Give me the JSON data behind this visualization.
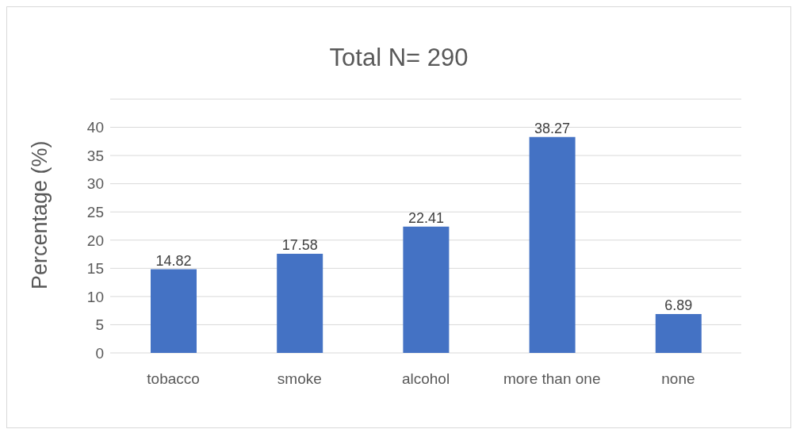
{
  "chart_data": {
    "type": "bar",
    "title": "Total N= 290",
    "ylabel": "Percentage (%)",
    "categories": [
      "tobacco",
      "smoke",
      "alcohol",
      "more than one",
      "none"
    ],
    "values": [
      14.82,
      17.58,
      22.41,
      38.27,
      6.89
    ],
    "color": "#4472c4",
    "ylim": [
      0,
      45
    ],
    "yticks": [
      0,
      5,
      10,
      15,
      20,
      25,
      30,
      35,
      40,
      {
        "value": 45,
        "label": null
      }
    ],
    "grid": "y",
    "data_labels": true
  }
}
